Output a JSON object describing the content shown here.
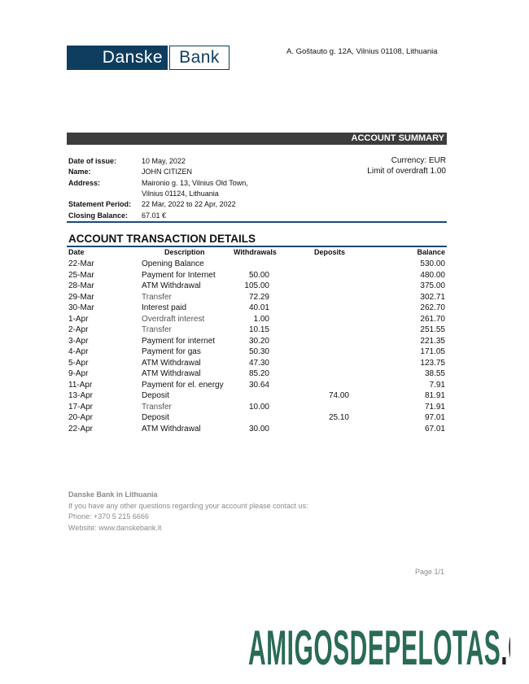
{
  "logo": {
    "part1": "Danske",
    "part2": "Bank"
  },
  "bank_address": "A. Goštauto g. 12A, Vilnius 01108, Lithuania",
  "summary": {
    "heading": "ACCOUNT SUMMARY",
    "date_label": "Date of issue:",
    "date": "10 May, 2022",
    "name_label": "Name:",
    "name": "JOHN CITIZEN",
    "address_label": "Address:",
    "address1": "Maironio g. 13, Vilnius Old Town,",
    "address2": "Vilnius 01124, Lithuania",
    "period_label": "Statement Period:",
    "period": "22 Mar, 2022 to 22 Apr, 2022",
    "closing_label": "Closing Balance:",
    "closing": "67.01 €",
    "currency": "Currency: EUR",
    "overdraft": "Limit of overdraft 1.00"
  },
  "transactions": {
    "title": "ACCOUNT TRANSACTION DETAILS",
    "headers": {
      "date": "Date",
      "description": "Description",
      "withdrawals": "Withdrawals",
      "deposits": "Deposits",
      "balance": "Balance"
    },
    "rows": [
      {
        "date": "22-Mar",
        "description": "Opening Balance",
        "withdrawal": "",
        "deposit": "",
        "balance": "530.00"
      },
      {
        "date": "25-Mar",
        "description": "Payment for Internet",
        "withdrawal": "50.00",
        "deposit": "",
        "balance": "480.00"
      },
      {
        "date": "28-Mar",
        "description": "ATM Withdrawal",
        "withdrawal": "105.00",
        "deposit": "",
        "balance": "375.00"
      },
      {
        "date": "29-Mar",
        "description": "Transfer",
        "withdrawal": "72.29",
        "deposit": "",
        "balance": "302.71"
      },
      {
        "date": "30-Mar",
        "description": "Interest paid",
        "withdrawal": "40.01",
        "deposit": "",
        "balance": "262.70"
      },
      {
        "date": "1-Apr",
        "description": "Overdraft interest",
        "withdrawal": "1.00",
        "deposit": "",
        "balance": "261.70"
      },
      {
        "date": "2-Apr",
        "description": "Transfer",
        "withdrawal": "10.15",
        "deposit": "",
        "balance": "251.55"
      },
      {
        "date": "3-Apr",
        "description": "Payment for internet",
        "withdrawal": "30.20",
        "deposit": "",
        "balance": "221.35"
      },
      {
        "date": "4-Apr",
        "description": "Payment for gas",
        "withdrawal": "50.30",
        "deposit": "",
        "balance": "171.05"
      },
      {
        "date": "5-Apr",
        "description": "ATM Withdrawal",
        "withdrawal": "47.30",
        "deposit": "",
        "balance": "123.75"
      },
      {
        "date": "9-Apr",
        "description": "ATM Withdrawal",
        "withdrawal": "85.20",
        "deposit": "",
        "balance": "38.55"
      },
      {
        "date": "11-Apr",
        "description": "Payment for el. energy",
        "withdrawal": "30.64",
        "deposit": "",
        "balance": "7.91"
      },
      {
        "date": "13-Apr",
        "description": "Deposit",
        "withdrawal": "",
        "deposit": "74.00",
        "balance": "81.91"
      },
      {
        "date": "17-Apr",
        "description": "Transfer",
        "withdrawal": "10.00",
        "deposit": "",
        "balance": "71.91"
      },
      {
        "date": "20-Apr",
        "description": "Deposit",
        "withdrawal": "",
        "deposit": "25.10",
        "balance": "97.01"
      },
      {
        "date": "22-Apr",
        "description": "ATM Withdrawal",
        "withdrawal": "30.00",
        "deposit": "",
        "balance": "67.01"
      }
    ]
  },
  "footer": {
    "bank": "Danske Bank in Lithuania",
    "contact": "If you have any other questions regarding your account please contact us:",
    "phone": "Phone: +370 5 215 6666",
    "website": "Website: www.danskebank.lt",
    "page": "Page 1/1"
  },
  "watermark": {
    "part1": "AMIGOSDEPELOTAS",
    "part2": ".COM",
    "color1": "#2a6b55",
    "color2": "#222222"
  },
  "colors": {
    "brand": "#0e3d5f",
    "summary_bar": "#3d3d3d"
  }
}
